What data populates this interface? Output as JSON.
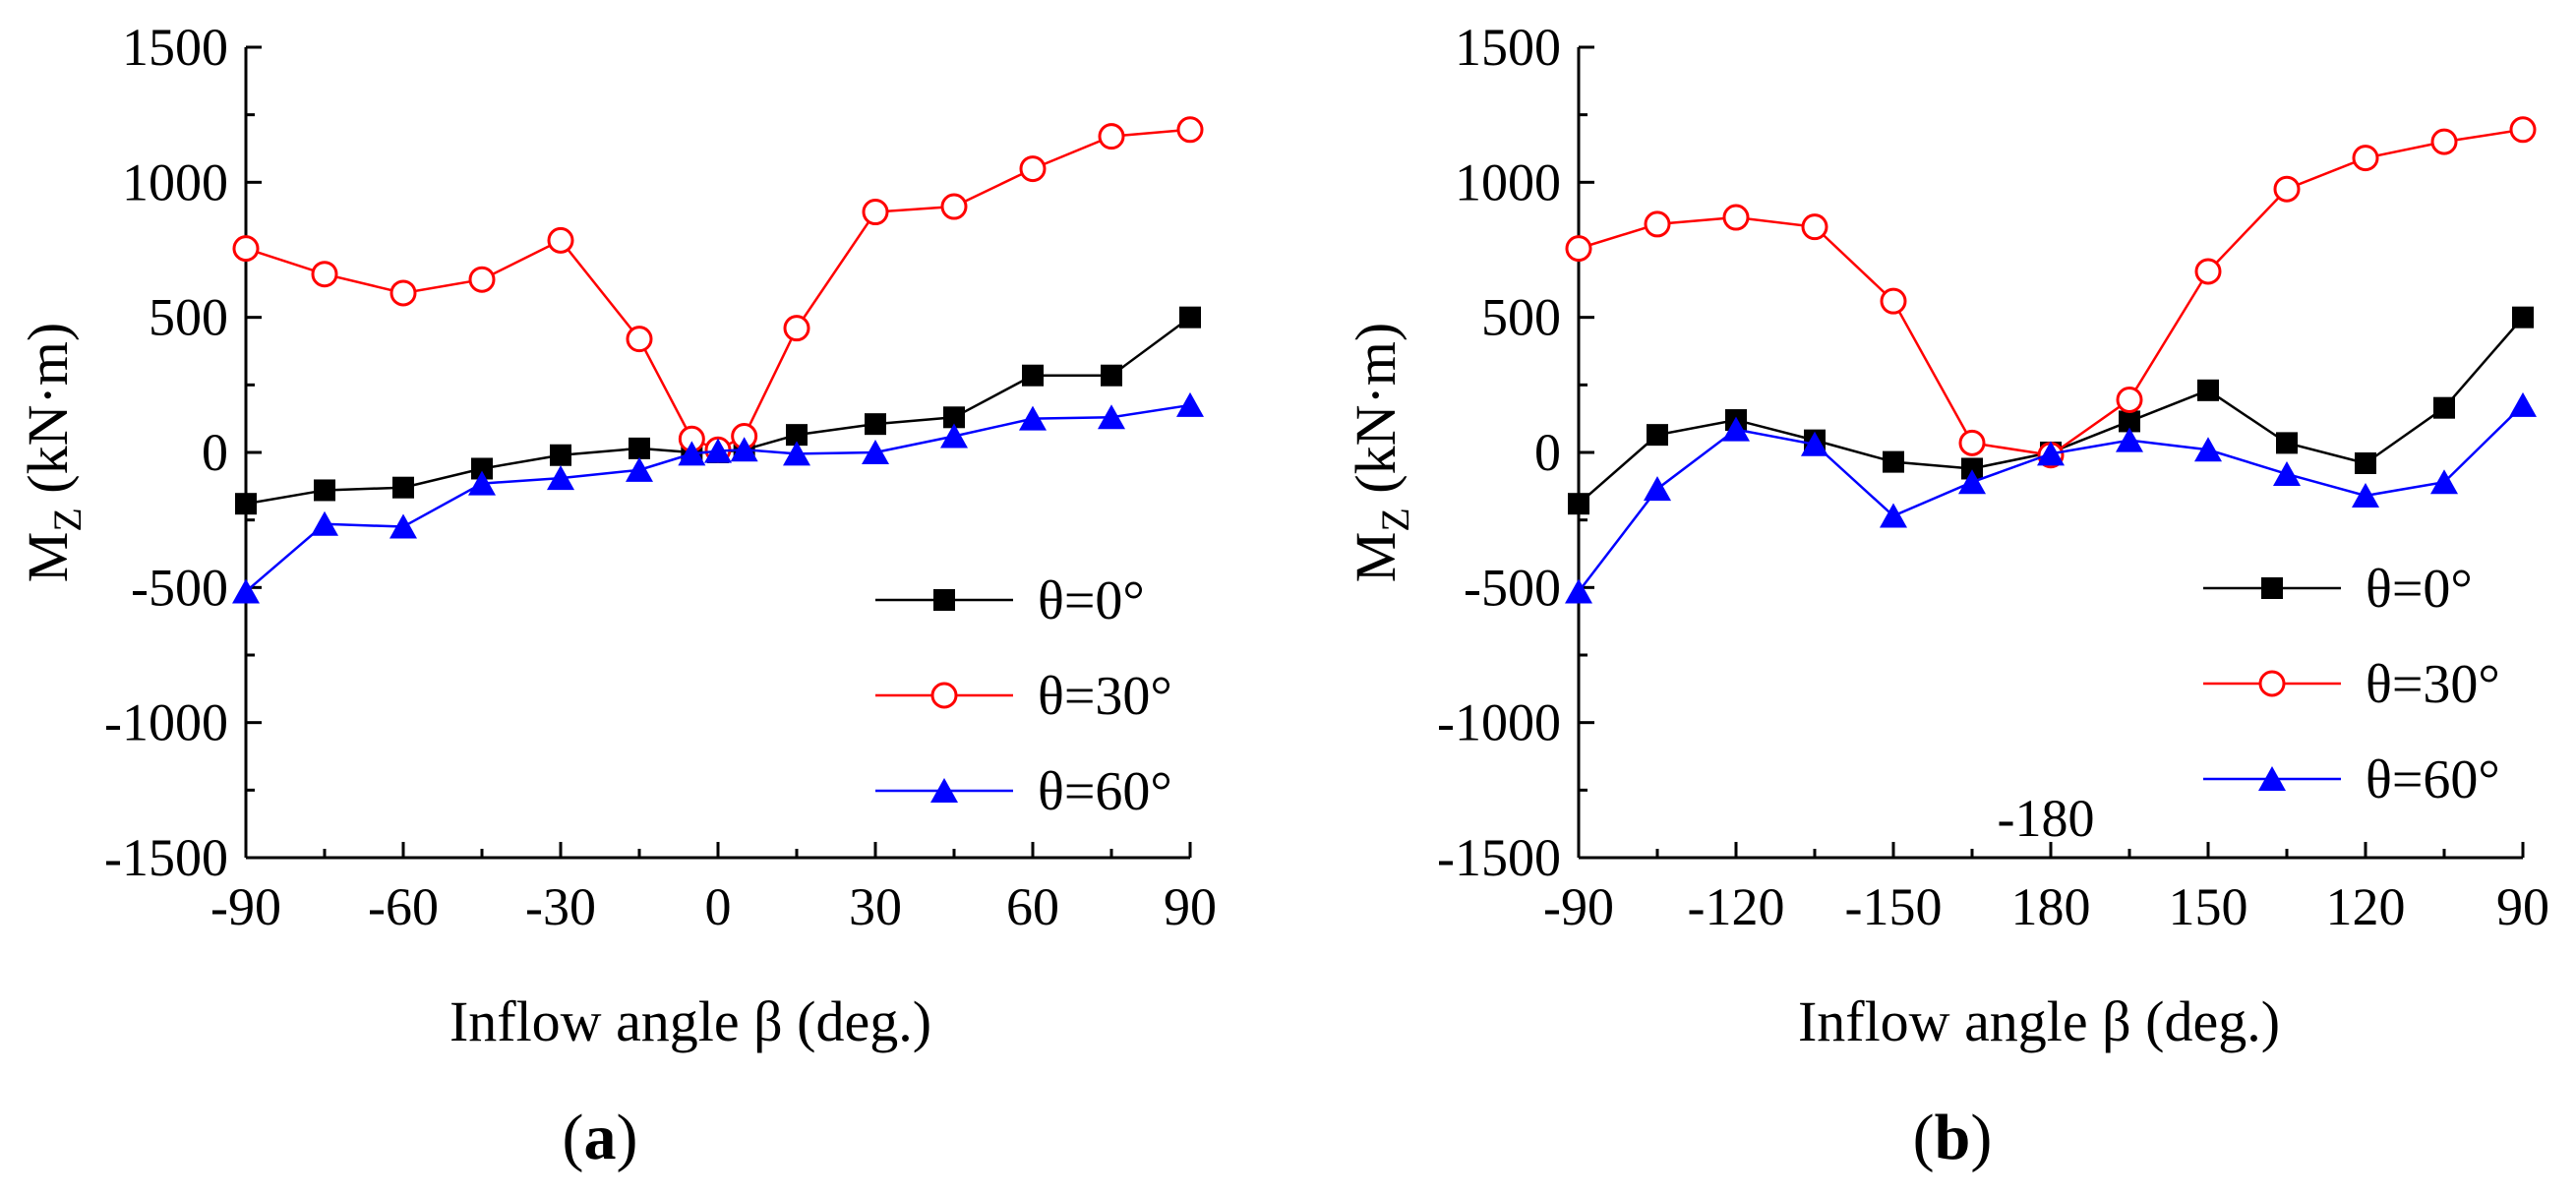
{
  "colors": {
    "s0": "#000000",
    "s30": "#ff0000",
    "s60": "#0000ff",
    "axis": "#000000"
  },
  "chart_data": [
    {
      "panel": "a",
      "type": "line",
      "panel_label_open": "(",
      "panel_label_letter": "a",
      "panel_label_close": ")",
      "ylabel_main": "M",
      "ylabel_sub": "Z",
      "ylabel_unit": " (kN·m)",
      "xlabel": "Inflow angle β (deg.)",
      "ylim": [
        -1500,
        1500
      ],
      "yticks": [
        -1500,
        -1000,
        -500,
        0,
        500,
        1000,
        1500
      ],
      "xticks": [
        {
          "pos": -90,
          "label": "-90"
        },
        {
          "pos": -60,
          "label": "-60"
        },
        {
          "pos": -30,
          "label": "-30"
        },
        {
          "pos": 0,
          "label": "0"
        },
        {
          "pos": 30,
          "label": "30"
        },
        {
          "pos": 60,
          "label": "60"
        },
        {
          "pos": 90,
          "label": "90"
        }
      ],
      "xlim": [
        -90,
        90
      ],
      "minor_ystep": 250,
      "minor_xstep": 15,
      "legend_position": "lower-right",
      "series": [
        {
          "name": "θ=0°",
          "color_key": "s0",
          "marker": "square-filled",
          "points": [
            [
              -90,
              -190
            ],
            [
              -75,
              -140
            ],
            [
              -60,
              -130
            ],
            [
              -45,
              -60
            ],
            [
              -30,
              -10
            ],
            [
              -15,
              15
            ],
            [
              -5,
              0
            ],
            [
              0,
              0
            ],
            [
              5,
              10
            ],
            [
              15,
              65
            ],
            [
              30,
              105
            ],
            [
              45,
              130
            ],
            [
              60,
              285
            ],
            [
              75,
              285
            ],
            [
              90,
              500
            ]
          ]
        },
        {
          "name": "θ=30°",
          "color_key": "s30",
          "marker": "circle-open",
          "points": [
            [
              -90,
              755
            ],
            [
              -75,
              660
            ],
            [
              -60,
              590
            ],
            [
              -45,
              640
            ],
            [
              -30,
              785
            ],
            [
              -15,
              420
            ],
            [
              -5,
              50
            ],
            [
              0,
              10
            ],
            [
              5,
              60
            ],
            [
              15,
              460
            ],
            [
              30,
              890
            ],
            [
              45,
              910
            ],
            [
              60,
              1050
            ],
            [
              75,
              1170
            ],
            [
              90,
              1195
            ]
          ]
        },
        {
          "name": "θ=60°",
          "color_key": "s60",
          "marker": "triangle-filled",
          "points": [
            [
              -90,
              -515
            ],
            [
              -75,
              -265
            ],
            [
              -60,
              -275
            ],
            [
              -45,
              -115
            ],
            [
              -30,
              -95
            ],
            [
              -15,
              -65
            ],
            [
              -5,
              -5
            ],
            [
              0,
              5
            ],
            [
              5,
              10
            ],
            [
              15,
              -5
            ],
            [
              30,
              0
            ],
            [
              45,
              60
            ],
            [
              60,
              125
            ],
            [
              75,
              130
            ],
            [
              90,
              175
            ]
          ]
        }
      ]
    },
    {
      "panel": "b",
      "type": "line",
      "panel_label_open": "(",
      "panel_label_letter": "b",
      "panel_label_close": ")",
      "ylabel_main": "M",
      "ylabel_sub": "Z",
      "ylabel_unit": " (kN·m)",
      "xlabel": "Inflow angle β (deg.)",
      "ylim": [
        -1500,
        1500
      ],
      "yticks": [
        -1500,
        -1000,
        -500,
        0,
        500,
        1000,
        1500
      ],
      "xticks": [
        {
          "pos": 0,
          "label": "-90"
        },
        {
          "pos": 2,
          "label": "-120"
        },
        {
          "pos": 4,
          "label": "-150"
        },
        {
          "pos": 6,
          "label": "180"
        },
        {
          "pos": 8,
          "label": "150"
        },
        {
          "pos": 10,
          "label": "120"
        },
        {
          "pos": 12,
          "label": "90"
        }
      ],
      "xlim": [
        0,
        12
      ],
      "minor_ystep": 250,
      "minor_xstep": 1,
      "annotation": "-180",
      "legend_position": "lower-right",
      "series": [
        {
          "name": "θ=0°",
          "color_key": "s0",
          "marker": "square-filled",
          "points": [
            [
              0,
              -190
            ],
            [
              1,
              65
            ],
            [
              2,
              120
            ],
            [
              3,
              45
            ],
            [
              4,
              -35
            ],
            [
              5,
              -60
            ],
            [
              6,
              0
            ],
            [
              7,
              115
            ],
            [
              8,
              230
            ],
            [
              9,
              35
            ],
            [
              10,
              -40
            ],
            [
              11,
              165
            ],
            [
              12,
              500
            ]
          ]
        },
        {
          "name": "θ=30°",
          "color_key": "s30",
          "marker": "circle-open",
          "points": [
            [
              0,
              755
            ],
            [
              1,
              845
            ],
            [
              2,
              870
            ],
            [
              3,
              835
            ],
            [
              4,
              560
            ],
            [
              5,
              35
            ],
            [
              6,
              -10
            ],
            [
              7,
              195
            ],
            [
              8,
              670
            ],
            [
              9,
              975
            ],
            [
              10,
              1090
            ],
            [
              11,
              1150
            ],
            [
              12,
              1195
            ]
          ]
        },
        {
          "name": "θ=60°",
          "color_key": "s60",
          "marker": "triangle-filled",
          "points": [
            [
              0,
              -515
            ],
            [
              1,
              -135
            ],
            [
              2,
              85
            ],
            [
              3,
              30
            ],
            [
              4,
              -235
            ],
            [
              5,
              -110
            ],
            [
              6,
              -5
            ],
            [
              7,
              45
            ],
            [
              8,
              10
            ],
            [
              9,
              -80
            ],
            [
              10,
              -160
            ],
            [
              11,
              -110
            ],
            [
              12,
              175
            ]
          ]
        }
      ]
    }
  ]
}
